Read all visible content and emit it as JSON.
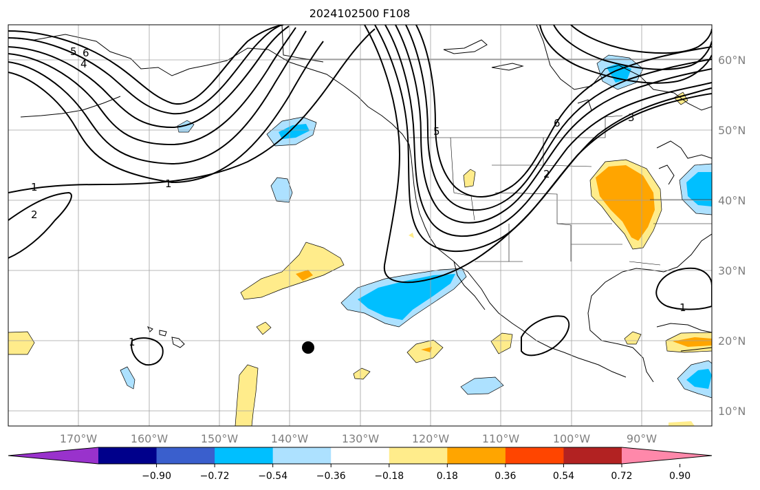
{
  "title": "2024102500 F108",
  "map": {
    "lat_labels": [
      "60°N",
      "50°N",
      "40°N",
      "30°N",
      "20°N",
      "10°N"
    ],
    "lon_labels": [
      "170°W",
      "160°W",
      "150°W",
      "140°W",
      "130°W",
      "120°W",
      "110°W",
      "100°W",
      "90°W"
    ],
    "contour_labels": [
      "5",
      "6",
      "4",
      "1",
      "2",
      "1",
      "5",
      "6",
      "3",
      "2",
      "1",
      "1"
    ],
    "colors": {
      "blue_dark": "#00bfff",
      "blue_light": "#ade1ff",
      "yellow": "#ffec8b",
      "orange": "#ffa500",
      "land_line": "#000000",
      "grid": "#a0a0a0"
    }
  },
  "colorbar": {
    "colors": [
      "#9932cc",
      "#00008b",
      "#3a5fcd",
      "#00bfff",
      "#ade1ff",
      "#ffffff",
      "#ffec8b",
      "#ffa500",
      "#ff4500",
      "#b22222",
      "#ff88aa"
    ],
    "tick_labels": [
      "−0.90",
      "−0.72",
      "−0.54",
      "−0.36",
      "−0.18",
      "0.18",
      "0.36",
      "0.54",
      "0.72",
      "0.90"
    ]
  }
}
